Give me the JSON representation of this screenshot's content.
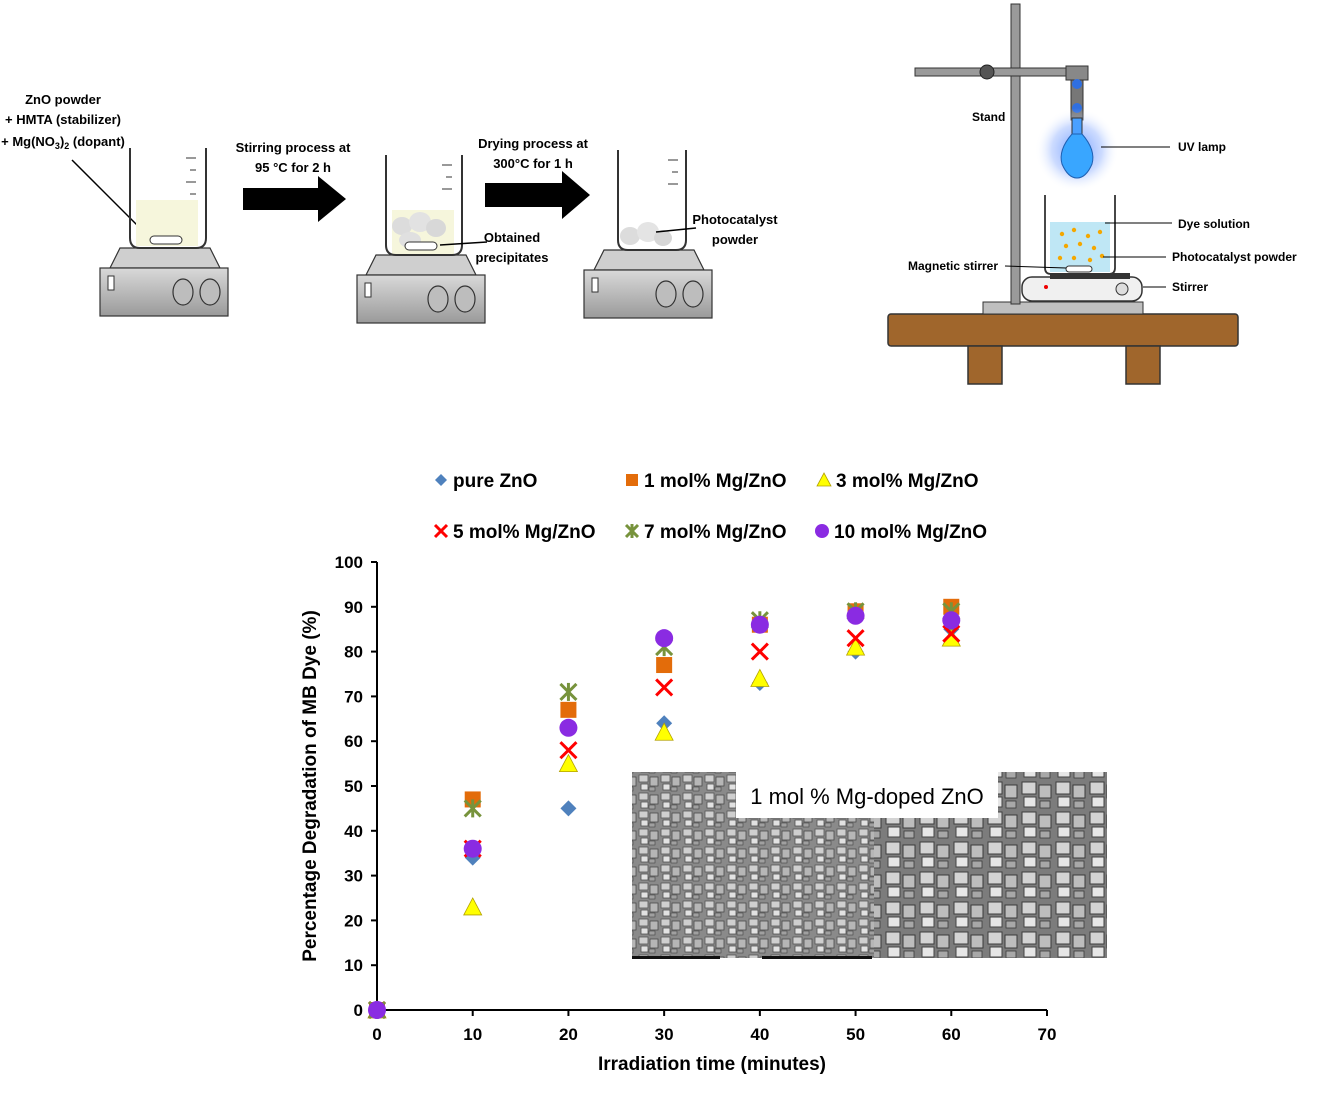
{
  "synthesis": {
    "reagents_line1": "ZnO powder",
    "reagents_line2": "+ HMTA (stabilizer)",
    "reagents_line3_pre": "+ Mg(NO",
    "reagents_line3_sub3": "3",
    "reagents_line3_mid": ")",
    "reagents_line3_sub2": "2",
    "reagents_line3_post": " (dopant)",
    "step1_line1": "Stirring process at",
    "step1_line2": "95 °C for 2 h",
    "step2_line1": "Drying process at",
    "step2_line2": "300°C for 1 h",
    "precipitates_line1": "Obtained",
    "precipitates_line2": "precipitates",
    "powder_line1": "Photocatalyst",
    "powder_line2": "powder"
  },
  "setup": {
    "stand": "Stand",
    "uv_lamp": "UV lamp",
    "dye_solution": "Dye solution",
    "photocatalyst": "Photocatalyst powder",
    "magnetic_stirrer": "Magnetic stirrer",
    "stirrer": "Stirrer"
  },
  "sem": {
    "caption": "1 mol % Mg-doped ZnO"
  },
  "chart_data": {
    "type": "scatter",
    "xlabel": "Irradiation time (minutes)",
    "ylabel": "Percentage Degradation of MB Dye (%)",
    "xlim": [
      0,
      70
    ],
    "ylim": [
      0,
      100
    ],
    "xticks": [
      0,
      10,
      20,
      30,
      40,
      50,
      60,
      70
    ],
    "yticks": [
      0,
      10,
      20,
      30,
      40,
      50,
      60,
      70,
      80,
      90,
      100
    ],
    "grid": false,
    "legend_position": "top",
    "x": [
      0,
      10,
      20,
      30,
      40,
      50,
      60
    ],
    "series": [
      {
        "name": "pure ZnO",
        "marker": "diamond",
        "color": "#4f81bd",
        "values": [
          0,
          34,
          45,
          64,
          73,
          80,
          85
        ]
      },
      {
        "name": "1 mol% Mg/ZnO",
        "marker": "square",
        "color": "#e36c0a",
        "values": [
          0,
          47,
          67,
          77,
          86,
          89,
          90
        ]
      },
      {
        "name": "3 mol% Mg/ZnO",
        "marker": "triangle",
        "color": "#ffff00",
        "values": [
          0,
          23,
          55,
          62,
          74,
          81,
          83
        ]
      },
      {
        "name": "5 mol% Mg/ZnO",
        "marker": "x",
        "color": "#ff0000",
        "values": [
          0,
          36,
          58,
          72,
          80,
          83,
          84
        ]
      },
      {
        "name": "7 mol% Mg/ZnO",
        "marker": "star",
        "color": "#77933c",
        "values": [
          0,
          45,
          71,
          81,
          87,
          89,
          89
        ]
      },
      {
        "name": "10 mol% Mg/ZnO",
        "marker": "circle",
        "color": "#8a2be2",
        "values": [
          0,
          36,
          63,
          83,
          86,
          88,
          87
        ]
      }
    ]
  }
}
